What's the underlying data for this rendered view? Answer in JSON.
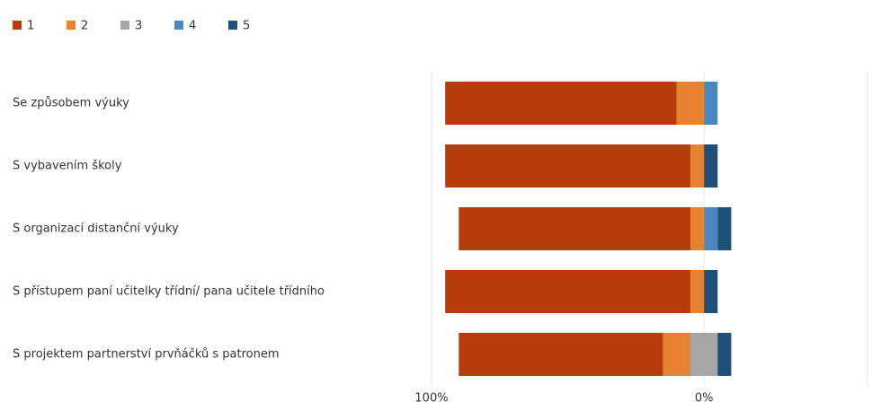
{
  "chart_data": {
    "type": "diverging-bar",
    "categories": [
      "Se způsobem výuky",
      "S vybavením školy",
      "S organizací distanční výuky",
      "S přístupem paní učitelky třídní/ pana učitele třídního",
      "S  projektem partnerství prvňáčků s patronem"
    ],
    "series": [
      {
        "name": "1",
        "color": "#b83c0b",
        "values": [
          85,
          90,
          85,
          90,
          75
        ]
      },
      {
        "name": "2",
        "color": "#e9822f",
        "values": [
          10,
          5,
          5,
          5,
          10
        ]
      },
      {
        "name": "3",
        "color": "#a6a6a6",
        "values": [
          0,
          0,
          0,
          0,
          10
        ]
      },
      {
        "name": "4",
        "color": "#4a87c1",
        "values": [
          5,
          0,
          5,
          0,
          0
        ]
      },
      {
        "name": "5",
        "color": "#1f4e79",
        "values": [
          0,
          5,
          5,
          5,
          5
        ]
      }
    ],
    "xlim": [
      -100,
      60
    ],
    "xticks": [
      {
        "value": -100,
        "label": "100%"
      },
      {
        "value": 0,
        "label": "0%"
      }
    ],
    "legend": "top-left"
  }
}
